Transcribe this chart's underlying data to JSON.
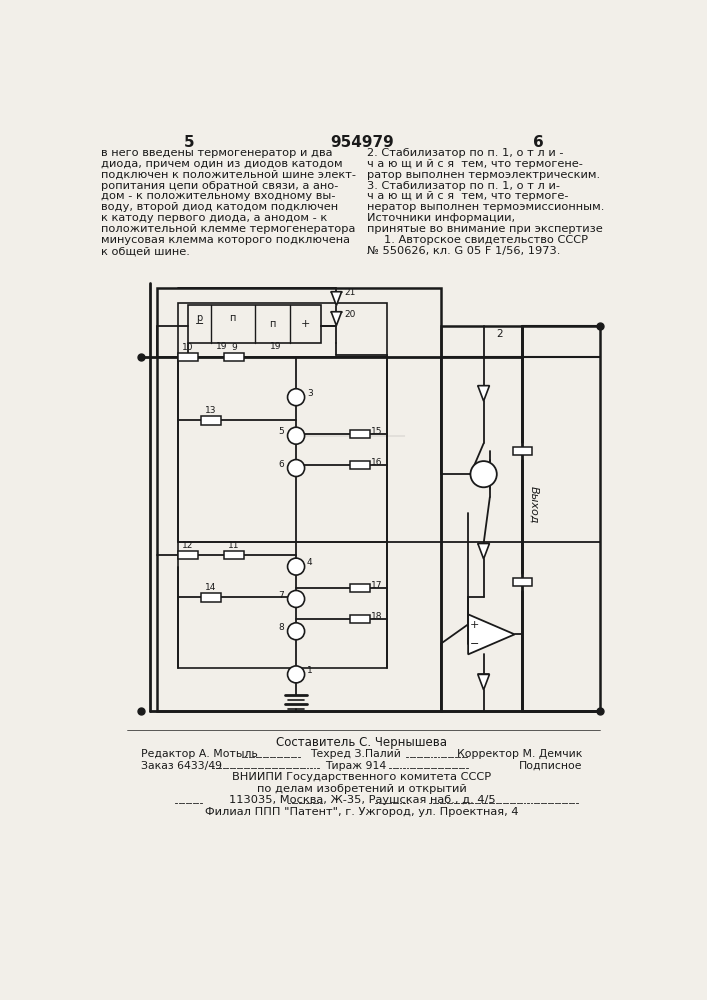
{
  "bg_color": "#f2efe9",
  "line_color": "#1a1a1a",
  "title_text": "954979",
  "page_left": "5",
  "page_right": "6",
  "top_left_text": [
    "в него введены термогенератор и два",
    "диода, причем один из диодов катодом",
    "подключен к положительной шине элект-",
    "ропитания цепи обратной связи, а ано-",
    "дом - к положительному входному вы-",
    "воду, второй диод катодом подключен",
    "к катоду первого диода, а анодом - к",
    "положительной клемме термогенератора",
    "минусовая клемма которого подключена",
    "к общей шине."
  ],
  "top_right_text": [
    "2. Стабилизатор по п. 1, о т л и -",
    "ч а ю щ и й с я  тем, что термогене-",
    "ратор выполнен термоэлектрическим.",
    "3. Стабилизатор по п. 1, о т л и-",
    "ч а ю щ и й с я  тем, что термоге-",
    "нератор выполнен термоэмиссионным.",
    "Источники информации,",
    "принятые во внимание при экспертизе",
    "1. Авторское свидетельство СССР",
    "№ 550626, кл. G 05 F 1/56, 1973."
  ],
  "bottom_text_line1": "Составитель С. Чернышева",
  "bottom_text_line2_left": "Редактор А. Мотыль",
  "bottom_text_line2_mid": "Техред З.Палий",
  "bottom_text_line2_right": "Корректор М. Демчик",
  "bottom_text_line3_left": "Заказ 6433/49",
  "bottom_text_line3_mid": "Тираж 914",
  "bottom_text_line3_right": "Подписное",
  "bottom_text_line4": "ВНИИПИ Государственного комитета СССР",
  "bottom_text_line5": "по делам изобретений и открытий",
  "bottom_text_line6": "113035, Москва, Ж-35, Раушская наб., д. 4/5",
  "bottom_text_line7": "Филиал ППП \"Патент\", г. Ужгород, ул. Проектная, 4"
}
